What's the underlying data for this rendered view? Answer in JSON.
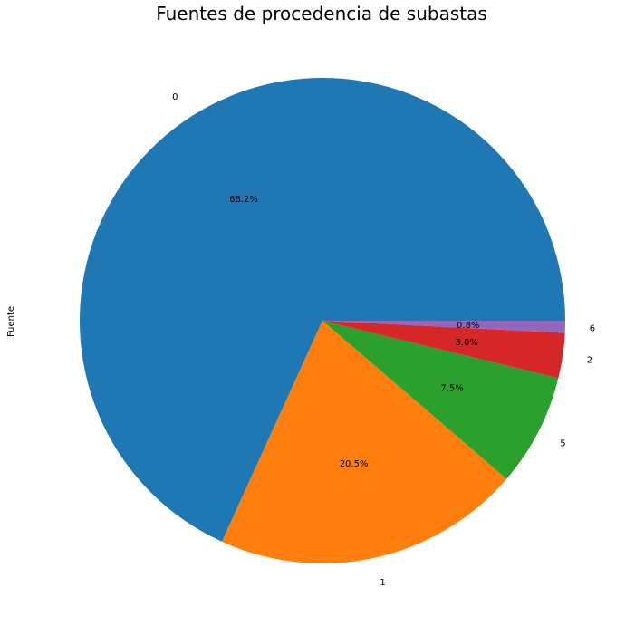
{
  "chart_data": {
    "type": "pie",
    "title": "Fuentes de procedencia de subastas",
    "ylabel": "Fuente",
    "start_angle_deg": 0,
    "direction": "counterclockwise",
    "slices": [
      {
        "label": "0",
        "value": 68.2,
        "pct_label": "68.2%",
        "color": "#1f77b4"
      },
      {
        "label": "1",
        "value": 20.5,
        "pct_label": "20.5%",
        "color": "#ff7f0e"
      },
      {
        "label": "5",
        "value": 7.5,
        "pct_label": "7.5%",
        "color": "#2ca02c"
      },
      {
        "label": "2",
        "value": 3.0,
        "pct_label": "3.0%",
        "color": "#d62728"
      },
      {
        "label": "6",
        "value": 0.8,
        "pct_label": "0.8%",
        "color": "#9467bd"
      }
    ]
  }
}
